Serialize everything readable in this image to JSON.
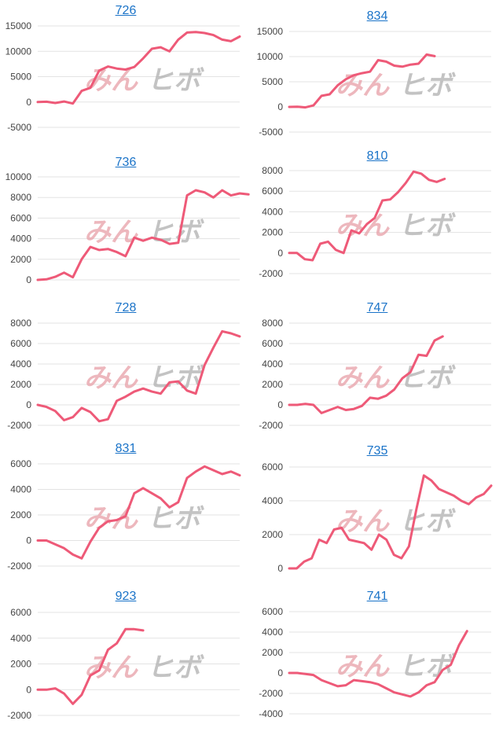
{
  "watermark": {
    "text_pink": "みん",
    "text_gray": "ヒボ",
    "colors": {
      "pink": "#e8a0a8",
      "gray": "#b0b0b0"
    }
  },
  "colors": {
    "line": "#ee5a78",
    "grid": "#e3e3e3",
    "title": "#1a73c8",
    "tick": "#444444"
  },
  "chart_data": [
    {
      "type": "line",
      "title": "726",
      "ylim": [
        -5000,
        15000
      ],
      "yticks": [
        -5000,
        0,
        5000,
        10000,
        15000
      ],
      "values": [
        0,
        50,
        -200,
        100,
        -300,
        2200,
        2800,
        6200,
        7000,
        6600,
        6400,
        6900,
        8600,
        10500,
        10800,
        10000,
        12300,
        13700,
        13800,
        13600,
        13200,
        12300,
        12000,
        12900
      ]
    },
    {
      "type": "line",
      "title": "834",
      "ylim": [
        -5000,
        15000
      ],
      "yticks": [
        -5000,
        0,
        5000,
        10000,
        15000
      ],
      "values": [
        0,
        50,
        -100,
        300,
        2200,
        2500,
        4300,
        5500,
        6300,
        6700,
        7000,
        9300,
        9000,
        8200,
        8000,
        8400,
        8600,
        10400,
        10100
      ]
    },
    {
      "type": "line",
      "title": "736",
      "ylim": [
        0,
        10000
      ],
      "yticks": [
        0,
        2000,
        4000,
        6000,
        8000,
        10000
      ],
      "values": [
        0,
        50,
        300,
        700,
        250,
        2000,
        3200,
        2900,
        3000,
        2700,
        2300,
        4100,
        3800,
        4100,
        3900,
        3500,
        3600,
        8200,
        8700,
        8500,
        8000,
        8700,
        8200,
        8400,
        8300
      ]
    },
    {
      "type": "line",
      "title": "810",
      "ylim": [
        -2000,
        8000
      ],
      "yticks": [
        -2000,
        0,
        2000,
        4000,
        6000,
        8000
      ],
      "values": [
        0,
        0,
        -600,
        -700,
        900,
        1100,
        300,
        0,
        2200,
        1900,
        2800,
        3400,
        5100,
        5200,
        5900,
        6800,
        7900,
        7700,
        7100,
        6900,
        7200
      ]
    },
    {
      "type": "line",
      "title": "728",
      "ylim": [
        -2000,
        8000
      ],
      "yticks": [
        -2000,
        0,
        2000,
        4000,
        6000,
        8000
      ],
      "values": [
        0,
        -200,
        -600,
        -1500,
        -1200,
        -300,
        -700,
        -1600,
        -1400,
        400,
        800,
        1300,
        1600,
        1300,
        1100,
        2200,
        2300,
        1400,
        1100,
        3900,
        5600,
        7200,
        7000,
        6700
      ]
    },
    {
      "type": "line",
      "title": "747",
      "ylim": [
        -2000,
        8000
      ],
      "yticks": [
        -2000,
        0,
        2000,
        4000,
        6000,
        8000
      ],
      "values": [
        0,
        0,
        100,
        0,
        -800,
        -500,
        -200,
        -500,
        -400,
        -100,
        700,
        600,
        900,
        1500,
        2600,
        3200,
        4900,
        4800,
        6300,
        6700
      ]
    },
    {
      "type": "line",
      "title": "831",
      "ylim": [
        -2000,
        6000
      ],
      "yticks": [
        -2000,
        0,
        2000,
        4000,
        6000
      ],
      "values": [
        0,
        0,
        -300,
        -600,
        -1100,
        -1400,
        -100,
        1000,
        1500,
        1600,
        1900,
        3700,
        4100,
        3700,
        3300,
        2600,
        3000,
        4900,
        5400,
        5800,
        5500,
        5200,
        5400,
        5100
      ]
    },
    {
      "type": "line",
      "title": "735",
      "ylim": [
        0,
        6000
      ],
      "yticks": [
        0,
        2000,
        4000,
        6000
      ],
      "values": [
        0,
        0,
        400,
        600,
        1700,
        1500,
        2300,
        2400,
        1700,
        1600,
        1500,
        1100,
        2000,
        1700,
        800,
        600,
        1300,
        3500,
        5500,
        5200,
        4700,
        4500,
        4300,
        4000,
        3800,
        4200,
        4400,
        4900
      ]
    },
    {
      "type": "line",
      "title": "923",
      "ylim": [
        -2000,
        6000
      ],
      "yticks": [
        -2000,
        0,
        2000,
        4000,
        6000
      ],
      "values": [
        0,
        0,
        100,
        -300,
        -1100,
        -400,
        1100,
        1500,
        3100,
        3600,
        4700,
        4700,
        4600
      ]
    },
    {
      "type": "line",
      "title": "741",
      "ylim": [
        -4000,
        6000
      ],
      "yticks": [
        -4000,
        -2000,
        0,
        2000,
        4000,
        6000
      ],
      "values": [
        0,
        0,
        -100,
        -200,
        -700,
        -1000,
        -1300,
        -1200,
        -700,
        -800,
        -900,
        -1100,
        -1500,
        -1900,
        -2100,
        -2300,
        -1900,
        -1200,
        -900,
        300,
        800,
        2700,
        4100
      ]
    }
  ]
}
